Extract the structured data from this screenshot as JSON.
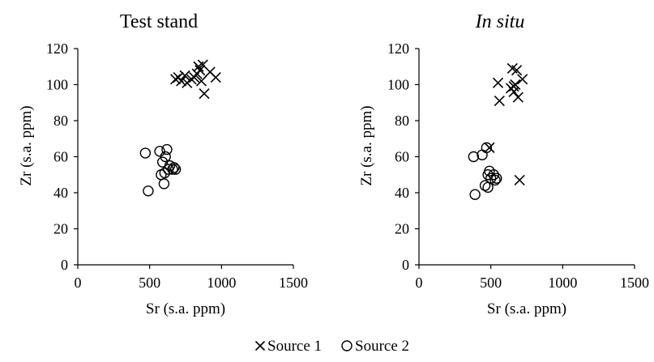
{
  "chart_data": [
    {
      "type": "scatter",
      "title": "Test stand",
      "title_style": "normal",
      "xlabel": "Sr (s.a. ppm)",
      "ylabel": "Zr (s.a. ppm)",
      "xlim": [
        0,
        1500
      ],
      "ylim": [
        0,
        120
      ],
      "xticks": [
        0,
        500,
        1000,
        1500
      ],
      "yticks": [
        0,
        20,
        40,
        60,
        80,
        100,
        120
      ],
      "grid": false,
      "series": [
        {
          "name": "Source 1",
          "marker": "x",
          "points": [
            [
              680,
              103
            ],
            [
              700,
              104
            ],
            [
              720,
              102
            ],
            [
              745,
              105
            ],
            [
              760,
              101
            ],
            [
              790,
              103
            ],
            [
              810,
              104
            ],
            [
              830,
              106
            ],
            [
              840,
              110
            ],
            [
              850,
              108
            ],
            [
              860,
              102
            ],
            [
              870,
              111
            ],
            [
              880,
              95
            ],
            [
              920,
              107
            ],
            [
              960,
              104
            ]
          ]
        },
        {
          "name": "Source 2",
          "marker": "o",
          "points": [
            [
              470,
              62
            ],
            [
              490,
              41
            ],
            [
              570,
              63
            ],
            [
              580,
              50
            ],
            [
              590,
              57
            ],
            [
              600,
              45
            ],
            [
              605,
              51
            ],
            [
              610,
              60
            ],
            [
              620,
              64
            ],
            [
              630,
              53
            ],
            [
              640,
              55
            ],
            [
              660,
              53
            ],
            [
              670,
              54
            ],
            [
              680,
              53
            ]
          ]
        }
      ]
    },
    {
      "type": "scatter",
      "title": "In situ",
      "title_style": "italic",
      "xlabel": "Sr (s.a. ppm)",
      "ylabel": "Zr (s.a. ppm)",
      "xlim": [
        0,
        1500
      ],
      "ylim": [
        0,
        120
      ],
      "xticks": [
        0,
        500,
        1000,
        1500
      ],
      "yticks": [
        0,
        20,
        40,
        60,
        80,
        100,
        120
      ],
      "grid": false,
      "series": [
        {
          "name": "Source 1",
          "marker": "x",
          "points": [
            [
              490,
              65
            ],
            [
              550,
              101
            ],
            [
              560,
              91
            ],
            [
              640,
              98
            ],
            [
              650,
              109
            ],
            [
              660,
              96
            ],
            [
              670,
              100
            ],
            [
              680,
              108
            ],
            [
              690,
              93
            ],
            [
              700,
              47
            ],
            [
              720,
              103
            ],
            [
              660,
              99
            ]
          ]
        },
        {
          "name": "Source 2",
          "marker": "o",
          "points": [
            [
              380,
              60
            ],
            [
              390,
              39
            ],
            [
              440,
              61
            ],
            [
              460,
              44
            ],
            [
              470,
              65
            ],
            [
              480,
              50
            ],
            [
              480,
              43
            ],
            [
              490,
              52
            ],
            [
              500,
              48
            ],
            [
              520,
              50
            ],
            [
              530,
              47
            ],
            [
              540,
              48
            ]
          ]
        }
      ]
    }
  ],
  "legend": {
    "position": "bottom-center",
    "items": [
      {
        "marker": "x",
        "label": "Source 1"
      },
      {
        "marker": "o",
        "label": "Source 2"
      }
    ]
  }
}
